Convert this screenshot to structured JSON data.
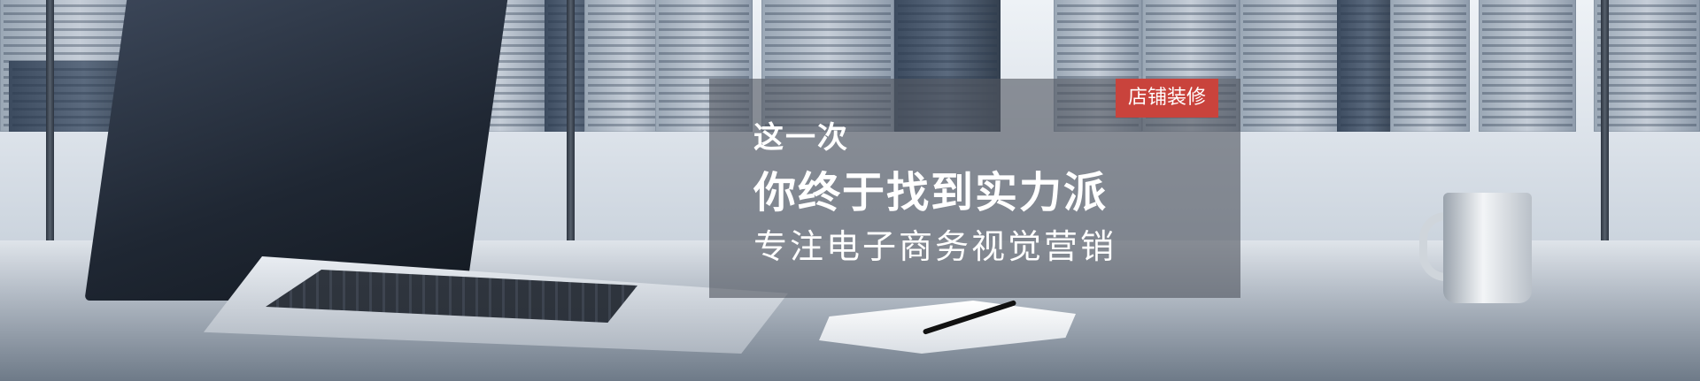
{
  "banner": {
    "tag": "店铺装修",
    "headline_small": "这一次",
    "headline_main": "你终于找到实力派",
    "tagline": "专注电子商务视觉营销"
  },
  "colors": {
    "tag_bg": "#c9433c",
    "panel_bg": "rgba(80,86,96,0.62)"
  }
}
